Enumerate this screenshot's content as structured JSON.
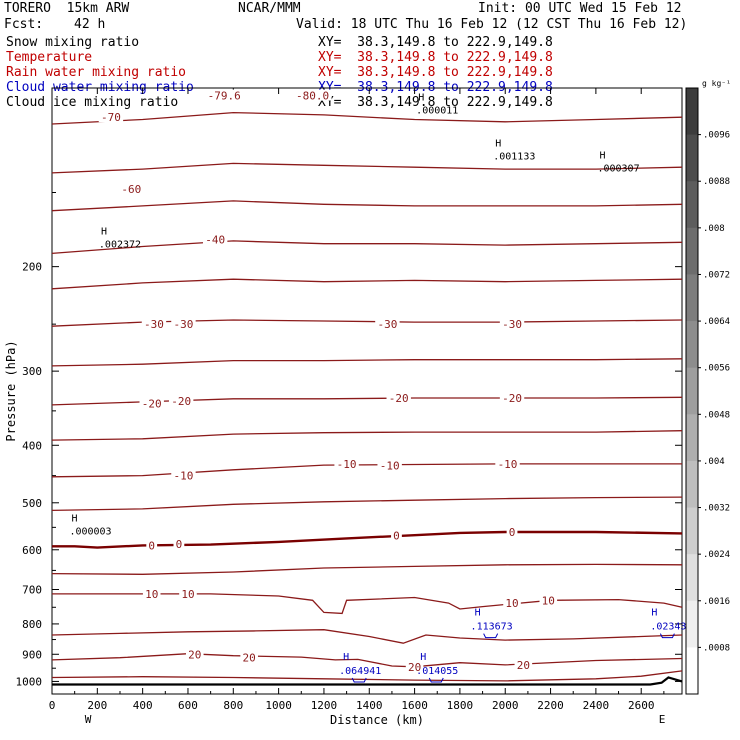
{
  "header": {
    "model": "TORERO  15km ARW",
    "center": "NCAR/MMM",
    "init": "Init: 00 UTC Wed 15 Feb 12",
    "fcst_label": "Fcst:",
    "fcst_value": "42 h",
    "valid": "Valid: 18 UTC Thu 16 Feb 12 (12 CST Thu 16 Feb 12)"
  },
  "legend_lines": [
    {
      "name": "Snow mixing ratio",
      "xy": "XY=  38.3,149.8 to 222.9,149.8",
      "color": "#000000"
    },
    {
      "name": "Temperature",
      "xy": "XY=  38.3,149.8 to 222.9,149.8",
      "color": "#c00000"
    },
    {
      "name": "Rain water mixing ratio",
      "xy": "XY=  38.3,149.8 to 222.9,149.8",
      "color": "#c00000"
    },
    {
      "name": "Cloud water mixing ratio",
      "xy": "XY=  38.3,149.8 to 222.9,149.8",
      "color": "#0000c0"
    },
    {
      "name": "Cloud ice mixing ratio",
      "xy": "XY=  38.3,149.8 to 222.9,149.8",
      "color": "#000000"
    }
  ],
  "chart_data": {
    "type": "line",
    "title": "",
    "xlabel": "Distance (km)",
    "ylabel": "Pressure (hPa)",
    "xlim": [
      0,
      2780
    ],
    "ylim": [
      1050,
      100
    ],
    "y_scale": "log",
    "x_ticks": [
      "0",
      "200",
      "400",
      "600",
      "800",
      "1000",
      "1200",
      "1400",
      "1600",
      "1800",
      "2000",
      "2200",
      "2400",
      "2600"
    ],
    "y_ticks": [
      "200",
      "300",
      "400",
      "500",
      "600",
      "700",
      "800",
      "900",
      "1000"
    ],
    "x_end_labels": {
      "left": "W",
      "right": "E"
    },
    "colorbar": {
      "unit_label": "g kg⁻¹",
      "ticks": [
        ".0008",
        ".0016",
        ".0024",
        ".0032",
        ".004",
        ".0048",
        ".0056",
        ".0064",
        ".0072",
        ".008",
        ".0088",
        ".0096"
      ],
      "range": [
        0,
        0.0104
      ]
    },
    "temperature_labels": [
      {
        "text": "-79.6",
        "x": 760,
        "p": 103
      },
      {
        "text": "-80.0",
        "x": 1150,
        "p": 103
      },
      {
        "text": "-70",
        "x": 260,
        "p": 112
      },
      {
        "text": "-60",
        "x": 350,
        "p": 148
      },
      {
        "text": "-40",
        "x": 720,
        "p": 180
      },
      {
        "text": "-30",
        "x": 450,
        "p": 250
      },
      {
        "text": "-30",
        "x": 580,
        "p": 250
      },
      {
        "text": "-30",
        "x": 1480,
        "p": 250
      },
      {
        "text": "-30",
        "x": 2030,
        "p": 250
      },
      {
        "text": "-20",
        "x": 440,
        "p": 340
      },
      {
        "text": "-20",
        "x": 570,
        "p": 337
      },
      {
        "text": "-20",
        "x": 1530,
        "p": 333
      },
      {
        "text": "-20",
        "x": 2030,
        "p": 333
      },
      {
        "text": "-10",
        "x": 580,
        "p": 450
      },
      {
        "text": "-10",
        "x": 1300,
        "p": 430
      },
      {
        "text": "-10",
        "x": 1490,
        "p": 433
      },
      {
        "text": "-10",
        "x": 2010,
        "p": 430
      },
      {
        "text": "0",
        "x": 440,
        "p": 590
      },
      {
        "text": "0",
        "x": 560,
        "p": 587
      },
      {
        "text": "0",
        "x": 1520,
        "p": 568
      },
      {
        "text": "0",
        "x": 2030,
        "p": 560
      },
      {
        "text": "10",
        "x": 440,
        "p": 712
      },
      {
        "text": "10",
        "x": 600,
        "p": 712
      },
      {
        "text": "10",
        "x": 2030,
        "p": 738
      },
      {
        "text": "10",
        "x": 2190,
        "p": 730
      },
      {
        "text": "20",
        "x": 630,
        "p": 900
      },
      {
        "text": "20",
        "x": 870,
        "p": 912
      },
      {
        "text": "20",
        "x": 1600,
        "p": 945
      },
      {
        "text": "20",
        "x": 2080,
        "p": 938
      }
    ],
    "temperature_isotherms": [
      {
        "level": -70,
        "points": [
          [
            0,
            115
          ],
          [
            400,
            113
          ],
          [
            800,
            110
          ],
          [
            1200,
            111
          ],
          [
            1600,
            113
          ],
          [
            2000,
            114
          ],
          [
            2400,
            113
          ],
          [
            2780,
            112
          ]
        ]
      },
      {
        "level": -60,
        "points": [
          [
            0,
            139
          ],
          [
            400,
            137
          ],
          [
            800,
            134
          ],
          [
            1200,
            135
          ],
          [
            1600,
            136
          ],
          [
            2000,
            137
          ],
          [
            2400,
            137
          ],
          [
            2780,
            136
          ]
        ]
      },
      {
        "level": -50,
        "points": [
          [
            0,
            161
          ],
          [
            400,
            158
          ],
          [
            800,
            155
          ],
          [
            1200,
            157
          ],
          [
            1600,
            158
          ],
          [
            2000,
            158
          ],
          [
            2400,
            158
          ],
          [
            2780,
            157
          ]
        ]
      },
      {
        "level": -40,
        "points": [
          [
            0,
            190
          ],
          [
            400,
            185
          ],
          [
            800,
            181
          ],
          [
            1200,
            183
          ],
          [
            1600,
            183
          ],
          [
            2000,
            184
          ],
          [
            2400,
            183
          ],
          [
            2780,
            182
          ]
        ]
      },
      {
        "level": -35,
        "points": [
          [
            0,
            218
          ],
          [
            400,
            213
          ],
          [
            800,
            210
          ],
          [
            1200,
            212
          ],
          [
            1600,
            211
          ],
          [
            2000,
            212
          ],
          [
            2400,
            211
          ],
          [
            2780,
            210
          ]
        ]
      },
      {
        "level": -30,
        "points": [
          [
            0,
            252
          ],
          [
            400,
            248
          ],
          [
            800,
            246
          ],
          [
            1200,
            247
          ],
          [
            1600,
            248
          ],
          [
            2000,
            248
          ],
          [
            2400,
            247
          ],
          [
            2780,
            246
          ]
        ]
      },
      {
        "level": -25,
        "points": [
          [
            0,
            294
          ],
          [
            400,
            292
          ],
          [
            800,
            288
          ],
          [
            1200,
            288
          ],
          [
            1600,
            287
          ],
          [
            2000,
            287
          ],
          [
            2400,
            287
          ],
          [
            2780,
            286
          ]
        ]
      },
      {
        "level": -20,
        "points": [
          [
            0,
            342
          ],
          [
            400,
            338
          ],
          [
            800,
            334
          ],
          [
            1200,
            334
          ],
          [
            1600,
            333
          ],
          [
            2000,
            333
          ],
          [
            2400,
            333
          ],
          [
            2780,
            332
          ]
        ]
      },
      {
        "level": -15,
        "points": [
          [
            0,
            392
          ],
          [
            400,
            390
          ],
          [
            800,
            383
          ],
          [
            1200,
            381
          ],
          [
            1600,
            380
          ],
          [
            2000,
            380
          ],
          [
            2400,
            380
          ],
          [
            2780,
            378
          ]
        ]
      },
      {
        "level": -10,
        "points": [
          [
            0,
            452
          ],
          [
            400,
            450
          ],
          [
            800,
            440
          ],
          [
            1200,
            432
          ],
          [
            1600,
            431
          ],
          [
            2000,
            430
          ],
          [
            2400,
            430
          ],
          [
            2780,
            430
          ]
        ]
      },
      {
        "level": -5,
        "points": [
          [
            0,
            515
          ],
          [
            400,
            512
          ],
          [
            800,
            503
          ],
          [
            1200,
            498
          ],
          [
            1600,
            495
          ],
          [
            2000,
            492
          ],
          [
            2400,
            490
          ],
          [
            2780,
            489
          ]
        ]
      },
      {
        "level": 0,
        "points": [
          [
            0,
            592
          ],
          [
            100,
            592
          ],
          [
            200,
            595
          ],
          [
            400,
            590
          ],
          [
            700,
            588
          ],
          [
            1000,
            582
          ],
          [
            1300,
            574
          ],
          [
            1600,
            567
          ],
          [
            1800,
            562
          ],
          [
            2000,
            560
          ],
          [
            2400,
            560
          ],
          [
            2780,
            563
          ]
        ]
      },
      {
        "level": 5,
        "points": [
          [
            0,
            658
          ],
          [
            400,
            660
          ],
          [
            800,
            654
          ],
          [
            1200,
            644
          ],
          [
            1600,
            640
          ],
          [
            2000,
            636
          ],
          [
            2400,
            635
          ],
          [
            2780,
            636
          ]
        ]
      },
      {
        "level": 10,
        "points": [
          [
            0,
            712
          ],
          [
            700,
            712
          ],
          [
            1000,
            718
          ],
          [
            1150,
            730
          ],
          [
            1200,
            765
          ],
          [
            1280,
            768
          ],
          [
            1300,
            730
          ],
          [
            1600,
            722
          ],
          [
            1750,
            738
          ],
          [
            1800,
            755
          ],
          [
            1900,
            748
          ],
          [
            2200,
            730
          ],
          [
            2500,
            728
          ],
          [
            2700,
            738
          ],
          [
            2780,
            750
          ]
        ]
      },
      {
        "level": 15,
        "points": [
          [
            0,
            835
          ],
          [
            300,
            830
          ],
          [
            600,
            825
          ],
          [
            900,
            822
          ],
          [
            1200,
            818
          ],
          [
            1400,
            840
          ],
          [
            1550,
            862
          ],
          [
            1650,
            835
          ],
          [
            1800,
            845
          ],
          [
            2000,
            852
          ],
          [
            2300,
            848
          ],
          [
            2600,
            840
          ],
          [
            2780,
            835
          ]
        ]
      },
      {
        "level": 20,
        "points": [
          [
            0,
            920
          ],
          [
            300,
            912
          ],
          [
            600,
            898
          ],
          [
            800,
            905
          ],
          [
            1100,
            910
          ],
          [
            1250,
            920
          ],
          [
            1350,
            918
          ],
          [
            1500,
            942
          ],
          [
            1600,
            945
          ],
          [
            1800,
            930
          ],
          [
            2000,
            938
          ],
          [
            2400,
            922
          ],
          [
            2780,
            915
          ]
        ]
      },
      {
        "level": 25,
        "points": [
          [
            0,
            985
          ],
          [
            400,
            982
          ],
          [
            800,
            985
          ],
          [
            1200,
            990
          ],
          [
            1600,
            995
          ],
          [
            2000,
            998
          ],
          [
            2400,
            990
          ],
          [
            2600,
            980
          ],
          [
            2780,
            960
          ]
        ]
      }
    ],
    "cloud_water_max": [
      {
        "value": ".113673",
        "x": 1940,
        "p": 793
      },
      {
        "value": ".064941",
        "x": 1360,
        "p": 942
      },
      {
        "value": ".014055",
        "x": 1700,
        "p": 942
      },
      {
        "value": ".02343",
        "x": 2720,
        "p": 793
      }
    ],
    "snow_max": [
      {
        "value": ".002372",
        "x": 300,
        "p": 180
      },
      {
        "value": ".001133",
        "x": 2040,
        "p": 128
      },
      {
        "value": ".000307",
        "x": 2500,
        "p": 134
      },
      {
        "value": ".000003",
        "x": 170,
        "p": 548
      },
      {
        "value": ".000011",
        "x": 1700,
        "p": 107
      }
    ],
    "terrain": {
      "pressure": [
        1012,
        1012,
        1012,
        1012,
        1012,
        1012,
        1005,
        985,
        1000
      ],
      "x": [
        0,
        800,
        1600,
        2400,
        2550,
        2640,
        2690,
        2720,
        2780
      ]
    }
  }
}
